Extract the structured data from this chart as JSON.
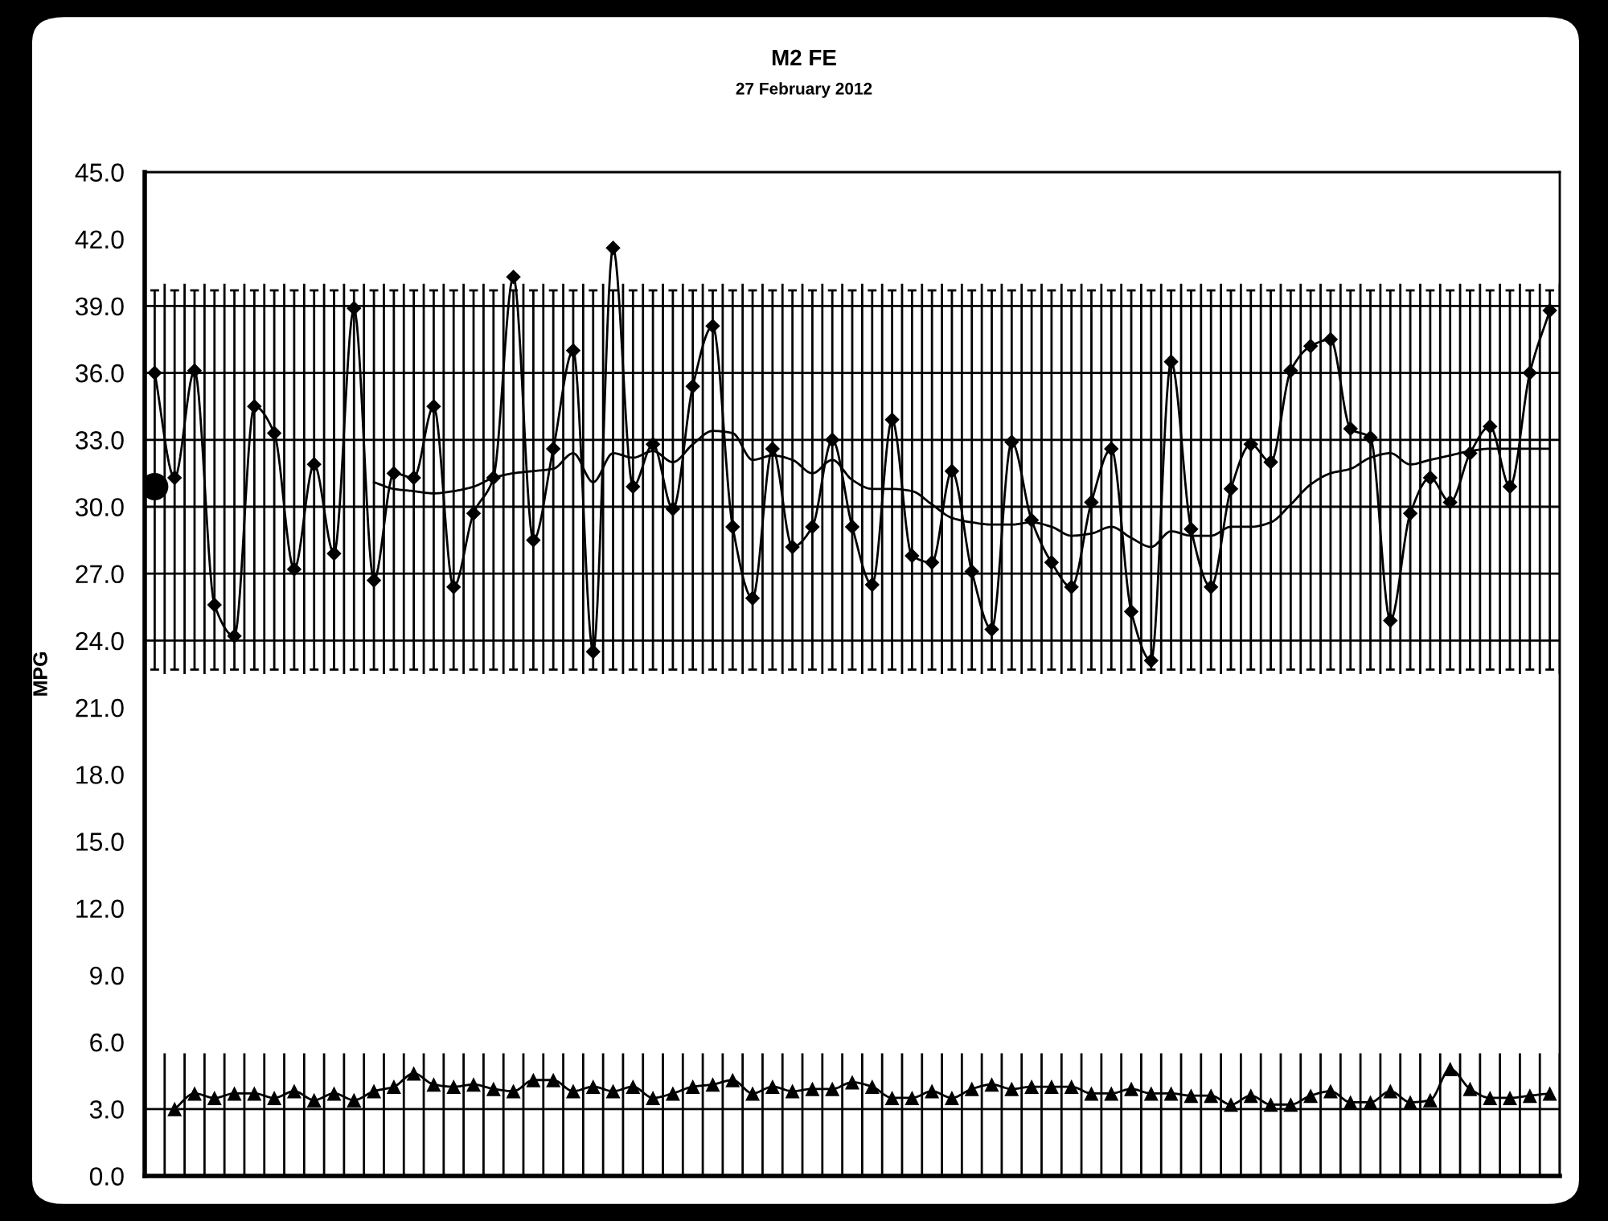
{
  "chart_data": {
    "type": "line",
    "title": "M2 FE",
    "subtitle": "27 February 2012",
    "ylabel": "MPG",
    "categories": [
      null,
      null,
      null,
      null,
      null,
      null,
      null,
      null,
      null,
      null,
      null,
      null,
      null,
      null,
      null,
      null,
      null,
      null,
      null,
      null,
      null,
      null,
      null,
      null,
      null,
      null,
      null,
      null,
      null,
      null,
      null,
      null,
      null,
      null,
      null,
      null,
      null,
      null,
      null,
      null,
      null,
      null,
      null,
      null,
      null,
      null,
      null,
      null,
      null,
      null,
      null,
      null,
      null,
      null,
      null,
      null,
      null,
      null,
      null,
      null,
      null,
      null,
      null,
      null,
      null,
      null,
      null,
      null,
      null,
      null,
      null
    ],
    "ylim": [
      0,
      45
    ],
    "yticks": [
      {
        "value": 0,
        "label": "0.0"
      },
      {
        "value": 3,
        "label": "3.0"
      },
      {
        "value": 6,
        "label": "6.0"
      },
      {
        "value": 9,
        "label": "9.0"
      },
      {
        "value": 12,
        "label": "12.0"
      },
      {
        "value": 15,
        "label": "15.0"
      },
      {
        "value": 18,
        "label": "18.0"
      },
      {
        "value": 21,
        "label": "21.0"
      },
      {
        "value": 24,
        "label": "24.0"
      },
      {
        "value": 27,
        "label": "27.0"
      },
      {
        "value": 30,
        "label": "30.0"
      },
      {
        "value": 33,
        "label": "33.0"
      },
      {
        "value": 36,
        "label": "36.0"
      },
      {
        "value": 39,
        "label": "39.0"
      },
      {
        "value": 42,
        "label": "42.0"
      },
      {
        "value": 45,
        "label": "45.0"
      }
    ],
    "grid": true,
    "tick_labels": "y",
    "bands": [
      {
        "axis": "y",
        "from": 5.5,
        "to": 22.5,
        "color": "#ffffff"
      },
      {
        "axis": "y",
        "from": 40.0,
        "to": 45,
        "color": "#ffffff"
      }
    ],
    "series": [
      {
        "color": "#000000",
        "marker": "diamond",
        "values": [
          36.0,
          31.3,
          36.1,
          25.6,
          24.2,
          34.5,
          33.3,
          27.2,
          31.9,
          27.9,
          38.9,
          26.7,
          31.5,
          31.3,
          34.5,
          26.4,
          29.7,
          31.3,
          40.3,
          28.5,
          32.6,
          37.0,
          23.5,
          41.6,
          30.9,
          32.8,
          29.9,
          35.4,
          38.1,
          29.1,
          25.9,
          32.6,
          28.2,
          29.1,
          33.0,
          29.1,
          26.5,
          33.9,
          27.8,
          27.5,
          31.6,
          27.1,
          24.5,
          32.9,
          29.4,
          27.5,
          26.4,
          30.2,
          32.6,
          25.3,
          23.1,
          36.5,
          29.0,
          26.4,
          30.8,
          32.8,
          32.0,
          36.1,
          37.2,
          37.5,
          33.5,
          33.1,
          24.9,
          29.7,
          31.3,
          30.2,
          32.4,
          33.6,
          30.9,
          36.0,
          38.8
        ],
        "errors": [
          [
            22.7,
            39.7
          ],
          [
            22.7,
            39.7
          ],
          [
            22.7,
            39.7
          ],
          [
            22.7,
            39.7
          ],
          [
            22.7,
            39.7
          ],
          [
            22.7,
            39.7
          ],
          [
            22.7,
            39.7
          ],
          [
            22.7,
            39.7
          ],
          [
            22.7,
            39.7
          ],
          [
            22.7,
            39.7
          ],
          [
            22.7,
            39.7
          ],
          [
            22.7,
            39.7
          ],
          [
            22.7,
            39.7
          ],
          [
            22.7,
            39.7
          ],
          [
            22.7,
            39.7
          ],
          [
            22.7,
            39.7
          ],
          [
            22.7,
            39.7
          ],
          [
            22.7,
            39.7
          ],
          [
            22.7,
            39.7
          ],
          [
            22.7,
            39.7
          ],
          [
            22.7,
            39.7
          ],
          [
            22.7,
            39.7
          ],
          [
            22.7,
            39.7
          ],
          [
            22.7,
            39.7
          ],
          [
            22.7,
            39.7
          ],
          [
            22.7,
            39.7
          ],
          [
            22.7,
            39.7
          ],
          [
            22.7,
            39.7
          ],
          [
            22.7,
            39.7
          ],
          [
            22.7,
            39.7
          ],
          [
            22.7,
            39.7
          ],
          [
            22.7,
            39.7
          ],
          [
            22.7,
            39.7
          ],
          [
            22.7,
            39.7
          ],
          [
            22.7,
            39.7
          ],
          [
            22.7,
            39.7
          ],
          [
            22.7,
            39.7
          ],
          [
            22.7,
            39.7
          ],
          [
            22.7,
            39.7
          ],
          [
            22.7,
            39.7
          ],
          [
            22.7,
            39.7
          ],
          [
            22.7,
            39.7
          ],
          [
            22.7,
            39.7
          ],
          [
            22.7,
            39.7
          ],
          [
            22.7,
            39.7
          ],
          [
            22.7,
            39.7
          ],
          [
            22.7,
            39.7
          ],
          [
            22.7,
            39.7
          ],
          [
            22.7,
            39.7
          ],
          [
            22.7,
            39.7
          ],
          [
            22.7,
            39.7
          ],
          [
            22.7,
            39.7
          ],
          [
            22.7,
            39.7
          ],
          [
            22.7,
            39.7
          ],
          [
            22.7,
            39.7
          ],
          [
            22.7,
            39.7
          ],
          [
            22.7,
            39.7
          ],
          [
            22.7,
            39.7
          ],
          [
            22.7,
            39.7
          ],
          [
            22.7,
            39.7
          ],
          [
            22.7,
            39.7
          ],
          [
            22.7,
            39.7
          ],
          [
            22.7,
            39.7
          ],
          [
            22.7,
            39.7
          ],
          [
            22.7,
            39.7
          ],
          [
            22.7,
            39.7
          ],
          [
            22.7,
            39.7
          ],
          [
            22.7,
            39.7
          ],
          [
            22.7,
            39.7
          ],
          [
            22.7,
            39.7
          ],
          [
            22.7,
            39.7
          ]
        ]
      },
      {
        "color": "#000000",
        "marker": "none",
        "values": [
          null,
          null,
          null,
          null,
          null,
          null,
          null,
          null,
          null,
          null,
          null,
          31.1,
          30.8,
          30.7,
          30.6,
          30.7,
          30.9,
          31.3,
          31.5,
          31.6,
          31.7,
          32.4,
          31.1,
          32.4,
          32.2,
          32.5,
          32.0,
          32.8,
          33.4,
          33.3,
          32.1,
          32.3,
          32.1,
          31.5,
          32.1,
          31.2,
          30.8,
          30.8,
          30.7,
          30.1,
          29.5,
          29.3,
          29.2,
          29.2,
          29.3,
          29.1,
          28.7,
          28.8,
          29.1,
          28.6,
          28.2,
          28.9,
          28.7,
          28.7,
          29.1,
          29.1,
          29.3,
          30.1,
          31.0,
          31.5,
          31.7,
          32.2,
          32.4,
          31.9,
          32.1,
          32.3,
          32.5,
          32.6,
          32.6,
          32.6,
          32.6
        ]
      },
      {
        "color": "#000000",
        "marker": "triangle",
        "values": [
          null,
          3.0,
          3.7,
          3.5,
          3.7,
          3.7,
          3.5,
          3.8,
          3.4,
          3.7,
          3.4,
          3.8,
          4.0,
          4.6,
          4.1,
          4.0,
          4.1,
          3.9,
          3.8,
          4.3,
          4.3,
          3.8,
          4.0,
          3.8,
          4.0,
          3.5,
          3.7,
          4.0,
          4.1,
          4.3,
          3.7,
          4.0,
          3.8,
          3.9,
          3.9,
          4.2,
          4.0,
          3.5,
          3.5,
          3.8,
          3.5,
          3.9,
          4.1,
          3.9,
          4.0,
          4.0,
          4.0,
          3.7,
          3.7,
          3.9,
          3.7,
          3.7,
          3.6,
          3.6,
          3.2,
          3.6,
          3.2,
          3.2,
          3.6,
          3.8,
          3.3,
          3.3,
          3.8,
          3.3,
          3.4,
          4.8,
          3.9,
          3.5,
          3.5,
          3.6,
          3.7
        ]
      },
      {
        "type": "scatter",
        "color": "#000000",
        "marker": "circle",
        "values": [
          30.9,
          null,
          null,
          null,
          null,
          null,
          null,
          null,
          null,
          null,
          null,
          null,
          null,
          null,
          null,
          null,
          null,
          null,
          null,
          null,
          null,
          null,
          null,
          null,
          null,
          null,
          null,
          null,
          null,
          null,
          null,
          null,
          null,
          null,
          null,
          null,
          null,
          null,
          null,
          null,
          null,
          null,
          null,
          null,
          null,
          null,
          null,
          null,
          null,
          null,
          null,
          null,
          null,
          null,
          null,
          null,
          null,
          null,
          null,
          null,
          null,
          null,
          null,
          null,
          null,
          null,
          null,
          null,
          null,
          null,
          null
        ]
      }
    ]
  }
}
